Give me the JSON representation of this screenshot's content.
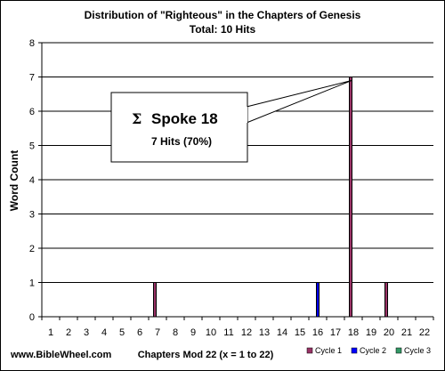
{
  "chart_data": {
    "type": "bar",
    "title": "Distribution of \"Righteous\" in the Chapters of Genesis",
    "subtitle": "Total: 10 Hits",
    "xlabel": "Chapters Mod 22 (x = 1 to 22)",
    "ylabel": "Word Count",
    "ylim": [
      0,
      8
    ],
    "yticks": [
      "0",
      "1",
      "2",
      "3",
      "4",
      "5",
      "6",
      "7",
      "8"
    ],
    "grid": true,
    "legend_position": "bottom-right",
    "categories": [
      "1",
      "2",
      "3",
      "4",
      "5",
      "6",
      "7",
      "8",
      "9",
      "10",
      "11",
      "12",
      "13",
      "14",
      "15",
      "16",
      "17",
      "18",
      "19",
      "20",
      "21",
      "22"
    ],
    "series": [
      {
        "name": "Cycle 1",
        "color": "#993366",
        "values": [
          0,
          0,
          0,
          0,
          0,
          0,
          1,
          0,
          0,
          0,
          0,
          0,
          0,
          0,
          0,
          0,
          0,
          7,
          0,
          1,
          0,
          0
        ]
      },
      {
        "name": "Cycle 2",
        "color": "#0000ff",
        "values": [
          0,
          0,
          0,
          0,
          0,
          0,
          0,
          0,
          0,
          0,
          0,
          0,
          0,
          0,
          0,
          1,
          0,
          0,
          0,
          0,
          0,
          0
        ]
      },
      {
        "name": "Cycle 3",
        "color": "#339966",
        "values": [
          0,
          0,
          0,
          0,
          0,
          0,
          0,
          0,
          0,
          0,
          0,
          0,
          0,
          0,
          0,
          0,
          0,
          0,
          0,
          0,
          0,
          0
        ]
      }
    ],
    "annotation": {
      "glyph": "Σ",
      "icon": "hebrew-letter-tsade-icon",
      "title": "Spoke 18",
      "subtitle": "7 Hits (70%)",
      "points_to_category": "18"
    }
  },
  "footer": {
    "site": "www.BibleWheel.com"
  }
}
